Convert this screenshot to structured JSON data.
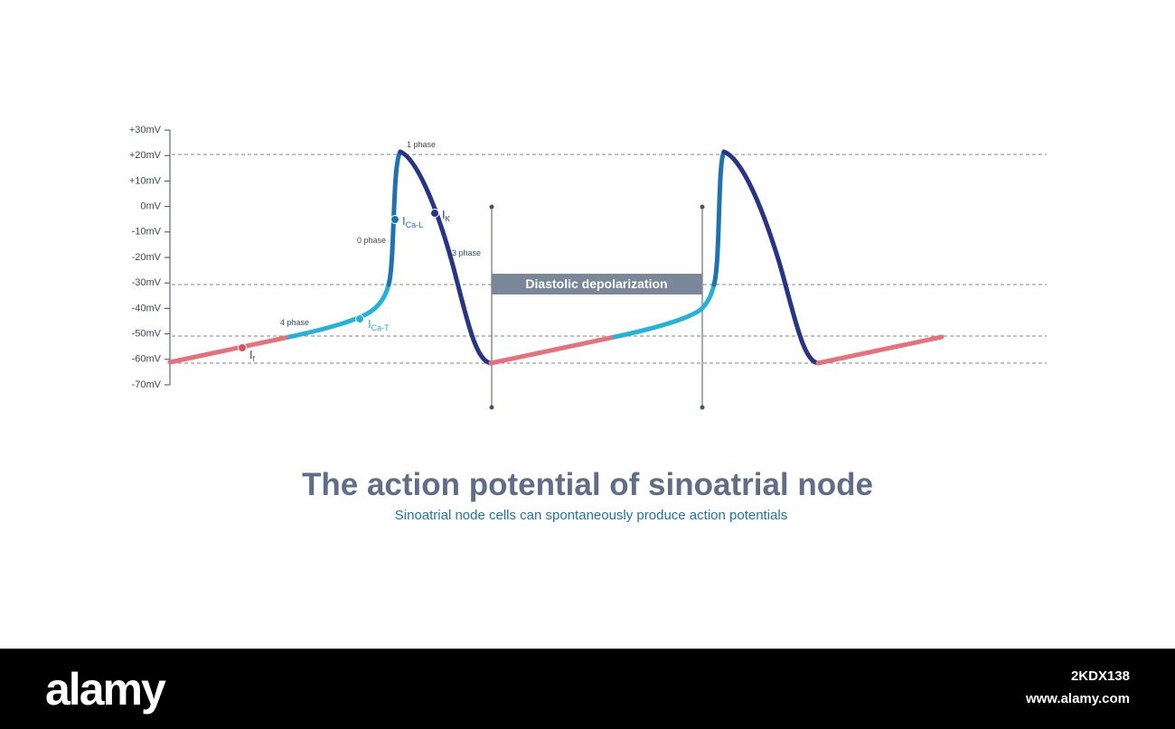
{
  "axis": {
    "labels": [
      "+30mV",
      "+20mV",
      "+10mV",
      "0mV",
      "-10mV",
      "-20mV",
      "-30mV",
      "-40mV",
      "-50mV",
      "-60mV",
      "-70mV"
    ]
  },
  "phases": {
    "p1": "1 phase",
    "p0": "0 phase",
    "p3": "3 phase",
    "p4": "4 phase"
  },
  "currents": {
    "ca_l": {
      "main": "I",
      "sub": "Ca-L"
    },
    "k": {
      "main": "I",
      "sub": "K"
    },
    "ca_t": {
      "main": "I",
      "sub": "Ca-T"
    },
    "f": {
      "main": "I",
      "sub": "f"
    }
  },
  "box_label": "Diastolic depolarization",
  "title": "The action potential of sinoatrial node",
  "subtitle": "Sinoatrial node cells can spontaneously produce action potentials",
  "footer": {
    "logo": "alamy",
    "image_id": "2KDX138",
    "url": "www.alamy.com"
  }
}
